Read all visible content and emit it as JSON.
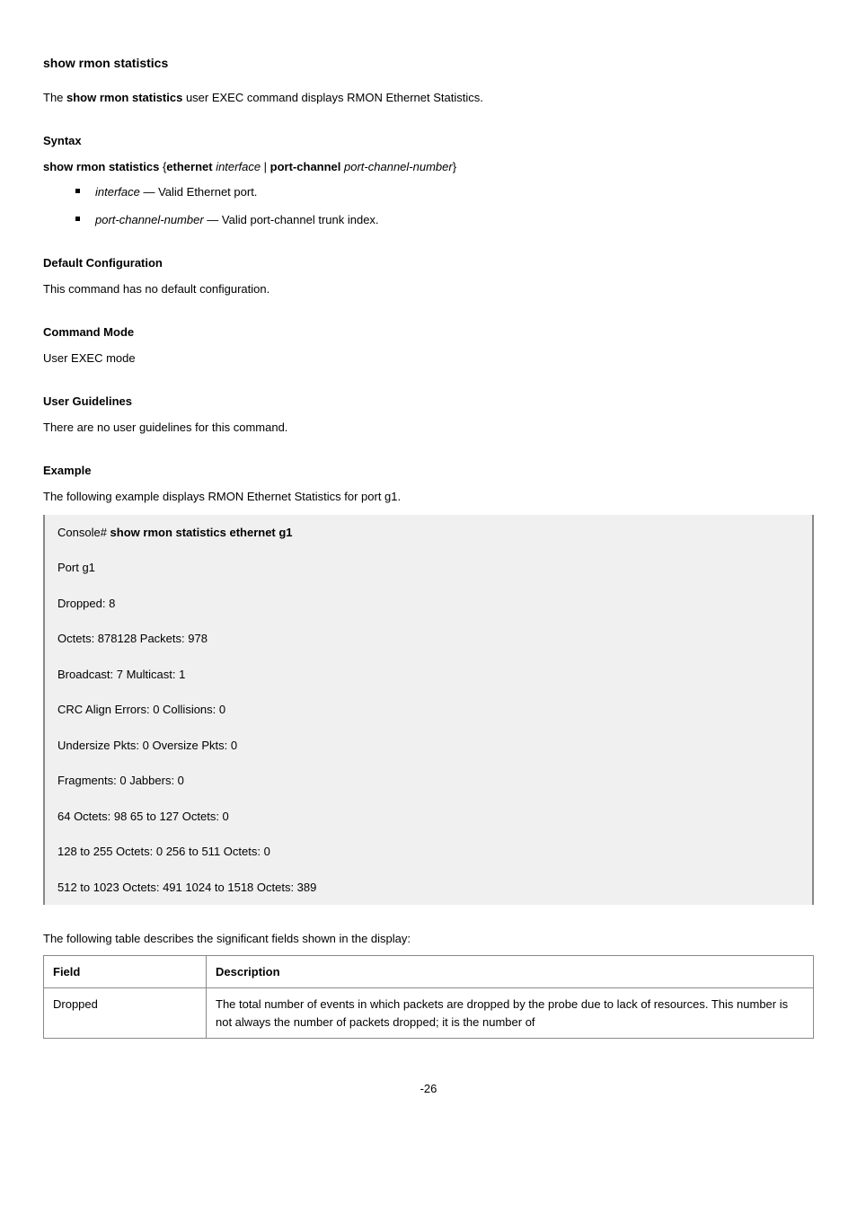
{
  "page": {
    "main_title": "show rmon statistics",
    "intro_pre": "The ",
    "intro_cmd": "show rmon statistics",
    "intro_post": " user EXEC command displays RMON Ethernet Statistics.",
    "syntax_title": "Syntax",
    "syntax_cmd": "show rmon statistics",
    "syntax_brace_open": "{",
    "syntax_kw_eth": "ethernet",
    "syntax_arg_iface": " interface",
    "syntax_pipe": " | ",
    "syntax_kw_pc": "port-channel",
    "syntax_arg_pcn": " port-channel-number",
    "syntax_brace_close": "}",
    "opt1_name": "interface",
    "opt1_desc": " — Valid Ethernet port.",
    "opt2_name": "port-channel-number",
    "opt2_desc": " — Valid port-channel trunk index.",
    "default_title": "Default Configuration",
    "default_body": "This command has no default configuration.",
    "mode_title": "Command Mode",
    "mode_body": "User EXEC mode",
    "ug_title": "User Guidelines",
    "ug_body": "There are no user guidelines for this command.",
    "example_title": "Example",
    "example_intro": "The following example displays RMON Ethernet Statistics for port g1.",
    "ex_r1_a": "Console# ",
    "ex_r1_b": "show rmon statistics ethernet g1",
    "ex_r2": "Port g1",
    "ex_r3": "Dropped: 8",
    "ex_r4": "Octets: 878128 Packets: 978",
    "ex_r5": "Broadcast: 7 Multicast: 1",
    "ex_r6": "CRC Align Errors: 0 Collisions: 0",
    "ex_r7": "Undersize Pkts: 0 Oversize Pkts: 0",
    "ex_r8": "Fragments: 0 Jabbers: 0",
    "ex_r9": "64 Octets: 98 65 to 127 Octets: 0",
    "ex_r10": "128 to 255 Octets: 0 256 to 511 Octets: 0",
    "ex_r11": "512 to 1023 Octets: 491 1024 to 1518 Octets: 389",
    "table_intro": "The following table describes the significant fields shown in the display:",
    "th_field": "Field",
    "th_desc": "Description",
    "row1_field": "Dropped",
    "row1_desc": "The total number of events in which packets are dropped by the probe due to lack of resources. This number is not always the number of packets dropped; it is the number of",
    "footer": "-26"
  }
}
